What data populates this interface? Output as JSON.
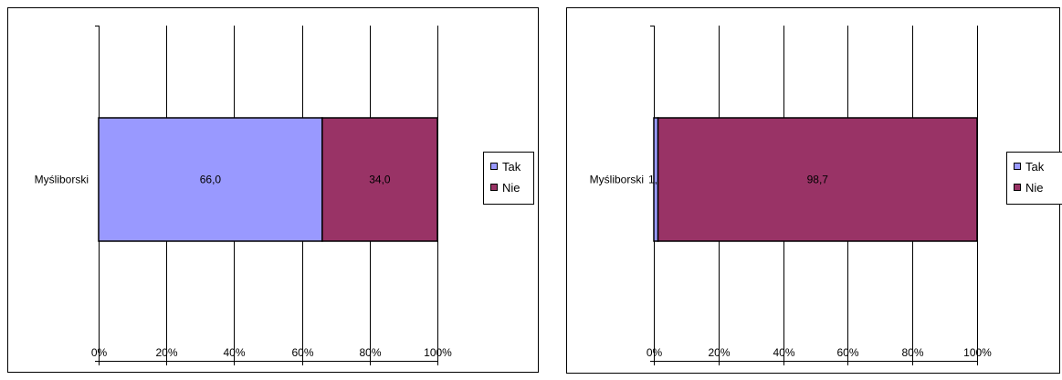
{
  "colors": {
    "tak": "#9999FF",
    "nie": "#993366",
    "axis": "#000000",
    "grid": "#000000",
    "text": "#000000"
  },
  "chart_data": [
    {
      "type": "bar",
      "orientation": "horizontal",
      "stacked": "percent",
      "categories": [
        "Myśliborski"
      ],
      "series": [
        {
          "name": "Tak",
          "values": [
            66.0
          ],
          "labels": [
            "66,0"
          ]
        },
        {
          "name": "Nie",
          "values": [
            34.0
          ],
          "labels": [
            "34,0"
          ]
        }
      ],
      "xticks": [
        "0%",
        "20%",
        "40%",
        "60%",
        "80%",
        "100%"
      ],
      "xlim": [
        0,
        100
      ],
      "grid": true,
      "legend": "right"
    },
    {
      "type": "bar",
      "orientation": "horizontal",
      "stacked": "percent",
      "categories": [
        "Myśliborski"
      ],
      "series": [
        {
          "name": "Tak",
          "values": [
            1.3
          ],
          "labels": [
            "1,3"
          ]
        },
        {
          "name": "Nie",
          "values": [
            98.7
          ],
          "labels": [
            "98,7"
          ]
        }
      ],
      "xticks": [
        "0%",
        "20%",
        "40%",
        "60%",
        "80%",
        "100%"
      ],
      "xlim": [
        0,
        100
      ],
      "grid": true,
      "legend": "right"
    }
  ]
}
